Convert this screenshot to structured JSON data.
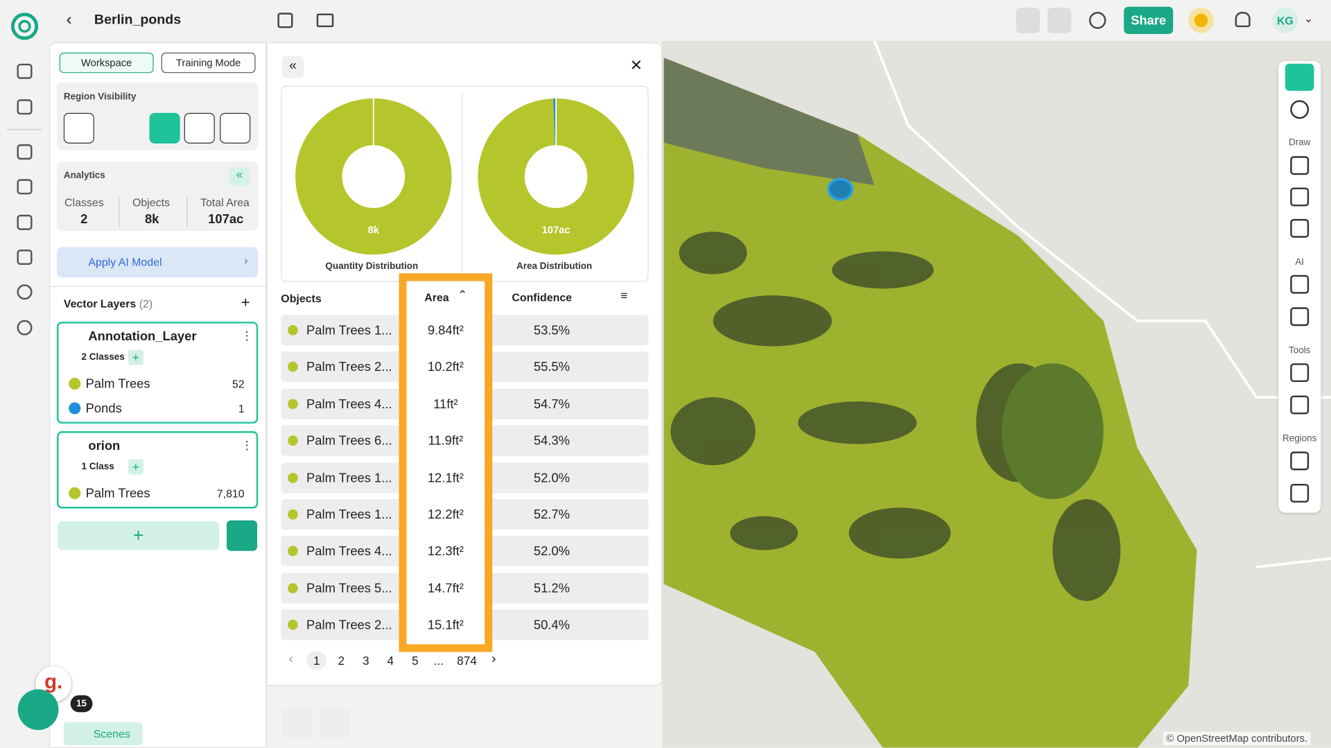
{
  "header": {
    "title": "Berlin_ponds",
    "share": "Share",
    "user": "KG"
  },
  "sidebar": {
    "workspace": "Workspace",
    "training_mode": "Training Mode",
    "region_visibility": "Region Visibility",
    "analytics": "Analytics",
    "stats": [
      {
        "label": "Classes",
        "value": "2"
      },
      {
        "label": "Objects",
        "value": "8k"
      },
      {
        "label": "Total Area",
        "value": "107ac"
      }
    ],
    "apply_ai": "Apply AI Model",
    "vector_layers": "Vector Layers",
    "vector_layers_count": "(2)",
    "layers": [
      {
        "name": "Annotation_Layer",
        "classes_label": "2 Classes",
        "classes": [
          {
            "name": "Palm Trees",
            "count": "52",
            "color": "#b5c52c"
          },
          {
            "name": "Ponds",
            "count": "1",
            "color": "#1e8fdc"
          }
        ]
      },
      {
        "name": "orion",
        "classes_label": "1 Class",
        "classes": [
          {
            "name": "Palm Trees",
            "count": "7,810",
            "color": "#b5c52c"
          }
        ]
      }
    ],
    "scenes": "Scenes",
    "badge": "15"
  },
  "charts": [
    {
      "center": "8k",
      "label": "Quantity Distribution",
      "slices": [
        {
          "name": "Palm Trees",
          "color": "#b5c52c",
          "value": 7862
        },
        {
          "name": "Ponds",
          "color": "#1e8fdc",
          "value": 1
        }
      ]
    },
    {
      "center": "107ac",
      "label": "Area Distribution",
      "slices": [
        {
          "name": "Palm Trees",
          "color": "#b5c52c",
          "value": 99.4
        },
        {
          "name": "Ponds",
          "color": "#1e8fdc",
          "value": 0.6
        }
      ]
    }
  ],
  "table": {
    "headers": [
      "Objects",
      "Area",
      "Confidence"
    ],
    "rows": [
      [
        "Palm Trees 1...",
        "9.84ft²",
        "53.5%"
      ],
      [
        "Palm Trees 2...",
        "10.2ft²",
        "55.5%"
      ],
      [
        "Palm Trees 4...",
        "11ft²",
        "54.7%"
      ],
      [
        "Palm Trees 6...",
        "11.9ft²",
        "54.3%"
      ],
      [
        "Palm Trees 1...",
        "12.1ft²",
        "52.0%"
      ],
      [
        "Palm Trees 1...",
        "12.2ft²",
        "52.7%"
      ],
      [
        "Palm Trees 4...",
        "12.3ft²",
        "52.0%"
      ],
      [
        "Palm Trees 5...",
        "14.7ft²",
        "51.2%"
      ],
      [
        "Palm Trees 2...",
        "15.1ft²",
        "50.4%"
      ]
    ],
    "pages": [
      "1",
      "2",
      "3",
      "4",
      "5",
      "...",
      "874"
    ]
  },
  "toolbar": {
    "draw": "Draw",
    "ai": "AI",
    "tools": "Tools",
    "regions": "Regions"
  },
  "map": {
    "attribution": "© OpenStreetMap contributors."
  }
}
